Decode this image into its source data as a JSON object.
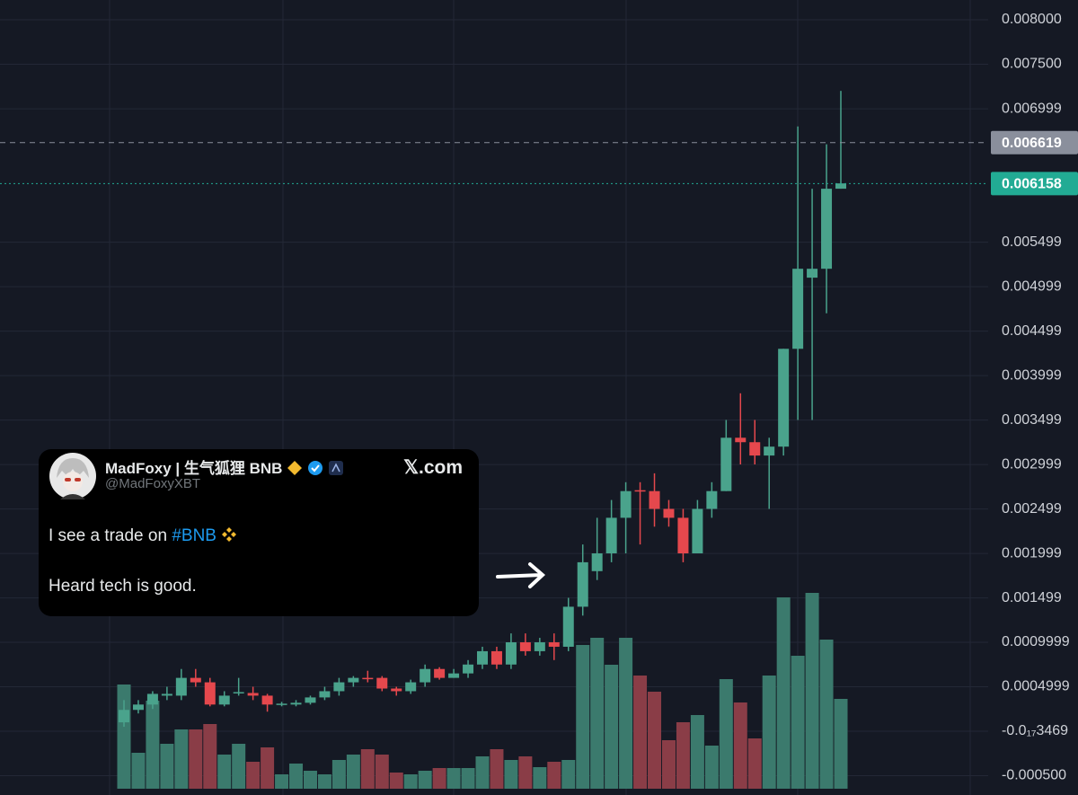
{
  "chart_data": {
    "type": "candlestick",
    "open": [
      0.0001,
      0.00024,
      0.0003,
      0.0004,
      0.0004,
      0.0006,
      0.00055,
      0.0003,
      0.00043,
      0.00043,
      0.0004,
      0.0003,
      0.0003,
      0.00032,
      0.00038,
      0.00045,
      0.00055,
      0.0006,
      0.0006,
      0.00048,
      0.00045,
      0.00055,
      0.0007,
      0.0006,
      0.00065,
      0.00075,
      0.0009,
      0.00075,
      0.001,
      0.0009,
      0.001,
      0.00095,
      0.0014,
      0.0018,
      0.002,
      0.0024,
      0.00271,
      0.0027,
      0.0025,
      0.0024,
      0.002,
      0.0025,
      0.0027,
      0.0033,
      0.00325,
      0.0031,
      0.0032,
      0.0043,
      0.0051,
      0.0052,
      0.0061
    ],
    "high": [
      0.00035,
      0.00035,
      0.00045,
      0.0005,
      0.0007,
      0.0007,
      0.0006,
      0.00045,
      0.0006,
      0.0005,
      0.00042,
      0.00033,
      0.00035,
      0.0004,
      0.0005,
      0.0006,
      0.00062,
      0.00068,
      0.00062,
      0.0005,
      0.00058,
      0.00075,
      0.00072,
      0.0007,
      0.0008,
      0.00095,
      0.00095,
      0.0011,
      0.0011,
      0.00105,
      0.0011,
      0.0015,
      0.0021,
      0.0024,
      0.0026,
      0.0028,
      0.0028,
      0.0029,
      0.0026,
      0.0025,
      0.0026,
      0.0028,
      0.0035,
      0.0038,
      0.0035,
      0.0033,
      0.0043,
      0.0068,
      0.0061,
      0.0066,
      0.0072
    ],
    "low": [
      5e-05,
      0.0002,
      0.00025,
      0.00035,
      0.00035,
      0.0005,
      0.00028,
      0.00028,
      0.0004,
      0.00035,
      0.00022,
      0.00028,
      0.00028,
      0.0003,
      0.00035,
      0.0004,
      0.0005,
      0.00055,
      0.00045,
      0.0004,
      0.00042,
      0.0005,
      0.00058,
      0.0006,
      0.0006,
      0.0007,
      0.0007,
      0.0007,
      0.00085,
      0.00085,
      0.0008,
      0.0009,
      0.0013,
      0.0017,
      0.0019,
      0.002,
      0.0021,
      0.0023,
      0.0023,
      0.0019,
      0.002,
      0.0024,
      0.0027,
      0.003,
      0.003,
      0.0025,
      0.0031,
      0.0035,
      0.0035,
      0.0047,
      0.0061
    ],
    "close": [
      0.00024,
      0.0003,
      0.00042,
      0.00042,
      0.0006,
      0.00055,
      0.0003,
      0.0004,
      0.00044,
      0.0004,
      0.0003,
      0.00031,
      0.00032,
      0.00038,
      0.00045,
      0.00055,
      0.0006,
      0.00059,
      0.00048,
      0.00045,
      0.00055,
      0.0007,
      0.0006,
      0.00065,
      0.00075,
      0.0009,
      0.00075,
      0.001,
      0.0009,
      0.001,
      0.00095,
      0.0014,
      0.0019,
      0.002,
      0.0024,
      0.0027,
      0.0027,
      0.0025,
      0.0024,
      0.002,
      0.0025,
      0.0027,
      0.0033,
      0.00325,
      0.0031,
      0.0032,
      0.0043,
      0.0052,
      0.0052,
      0.0061,
      0.00616
    ],
    "volume": [
      116,
      40,
      98,
      50,
      66,
      66,
      72,
      38,
      50,
      30,
      46,
      16,
      28,
      20,
      16,
      32,
      38,
      44,
      38,
      18,
      16,
      20,
      23,
      23,
      23,
      36,
      44,
      32,
      36,
      24,
      30,
      32,
      160,
      168,
      138,
      168,
      126,
      108,
      54,
      74,
      82,
      48,
      122,
      96,
      56,
      126,
      213,
      148,
      218,
      166,
      100
    ],
    "up_color": "#4aa38c",
    "down_color": "#e5484d",
    "up_volume_color": "#3b7a6d",
    "down_volume_color": "#8a3d47",
    "ylim": [
      -0.000717,
      0.008222
    ],
    "yticks": [
      {
        "value": 0.008,
        "label": "0.008000"
      },
      {
        "value": 0.0075,
        "label": "0.007500"
      },
      0.006999,
      0.005499,
      0.004999,
      0.004499,
      0.003999,
      0.003499,
      0.002999,
      0.002499,
      0.001999,
      0.001499,
      0.0009999,
      0.0004999,
      {
        "value": 0,
        "label": "-0.0₁₇3469"
      },
      {
        "value": -0.0005,
        "label": "-0.000500"
      }
    ],
    "grid": true,
    "price_lines": [
      {
        "value": 0.006619,
        "color": "#8a8f9c"
      },
      {
        "value": 0.006158,
        "color": "#22ab94"
      }
    ]
  },
  "tweet": {
    "name": "MadFoxy | 生气狐狸 BNB",
    "handle": "@MadFoxyXBT",
    "site": "𝕏.com",
    "text_start": "I see a trade on",
    "hashtag": "#BNB",
    "text_end": "Heard tech is good."
  }
}
